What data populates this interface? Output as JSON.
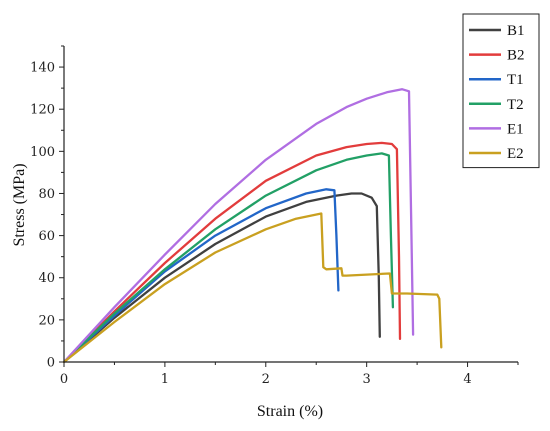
{
  "chart_data": {
    "type": "line",
    "title": "",
    "xlabel": "Strain (%)",
    "ylabel": "Stress (MPa)",
    "xlim": [
      0,
      4.5
    ],
    "ylim": [
      0,
      150
    ],
    "xticks": [
      0,
      1,
      2,
      3,
      4
    ],
    "yticks": [
      0,
      20,
      40,
      60,
      80,
      100,
      120,
      140
    ],
    "grid": false,
    "legend": "top-right",
    "series": [
      {
        "name": "B1",
        "color": "#404040",
        "x": [
          0,
          0.5,
          1.0,
          1.5,
          2.0,
          2.4,
          2.7,
          2.85,
          2.95,
          3.05,
          3.1,
          3.12,
          3.13
        ],
        "y": [
          0,
          21,
          40,
          56,
          69,
          76,
          79,
          80,
          80,
          78,
          74,
          40,
          12
        ]
      },
      {
        "name": "B2",
        "color": "#e23c3c",
        "x": [
          0,
          0.5,
          1.0,
          1.5,
          2.0,
          2.5,
          2.8,
          3.0,
          3.15,
          3.25,
          3.3,
          3.32,
          3.33
        ],
        "y": [
          0,
          24,
          47,
          68,
          86,
          98,
          102,
          103.5,
          104,
          103.5,
          101,
          50,
          11
        ]
      },
      {
        "name": "T1",
        "color": "#2266c8",
        "x": [
          0,
          0.5,
          1.0,
          1.5,
          2.0,
          2.4,
          2.6,
          2.68,
          2.7,
          2.72
        ],
        "y": [
          0,
          22,
          43,
          60,
          73,
          80,
          82,
          81.5,
          60,
          34
        ]
      },
      {
        "name": "T2",
        "color": "#22a066",
        "x": [
          0,
          0.5,
          1.0,
          1.5,
          2.0,
          2.5,
          2.8,
          3.0,
          3.15,
          3.22,
          3.24,
          3.26
        ],
        "y": [
          0,
          23,
          44,
          63,
          79,
          91,
          96,
          98,
          99,
          98,
          60,
          26
        ]
      },
      {
        "name": "E1",
        "color": "#b06ee2",
        "x": [
          0,
          0.5,
          1.0,
          1.5,
          2.0,
          2.5,
          2.8,
          3.0,
          3.2,
          3.35,
          3.42,
          3.44,
          3.46
        ],
        "y": [
          0,
          26,
          51,
          75,
          96,
          113,
          121,
          125,
          128,
          129.5,
          128.5,
          70,
          13
        ]
      },
      {
        "name": "E2",
        "color": "#c9a020",
        "x": [
          0,
          0.5,
          1.0,
          1.5,
          2.0,
          2.3,
          2.55,
          2.57,
          2.6,
          2.75,
          2.76,
          2.8,
          3.0,
          3.22,
          3.23,
          3.25,
          3.4,
          3.7,
          3.72,
          3.74
        ],
        "y": [
          0,
          19,
          37,
          52,
          63,
          68,
          70.5,
          45,
          44,
          44.5,
          41,
          41,
          41.5,
          42,
          42,
          32.5,
          32.5,
          32,
          30,
          7
        ]
      }
    ]
  }
}
